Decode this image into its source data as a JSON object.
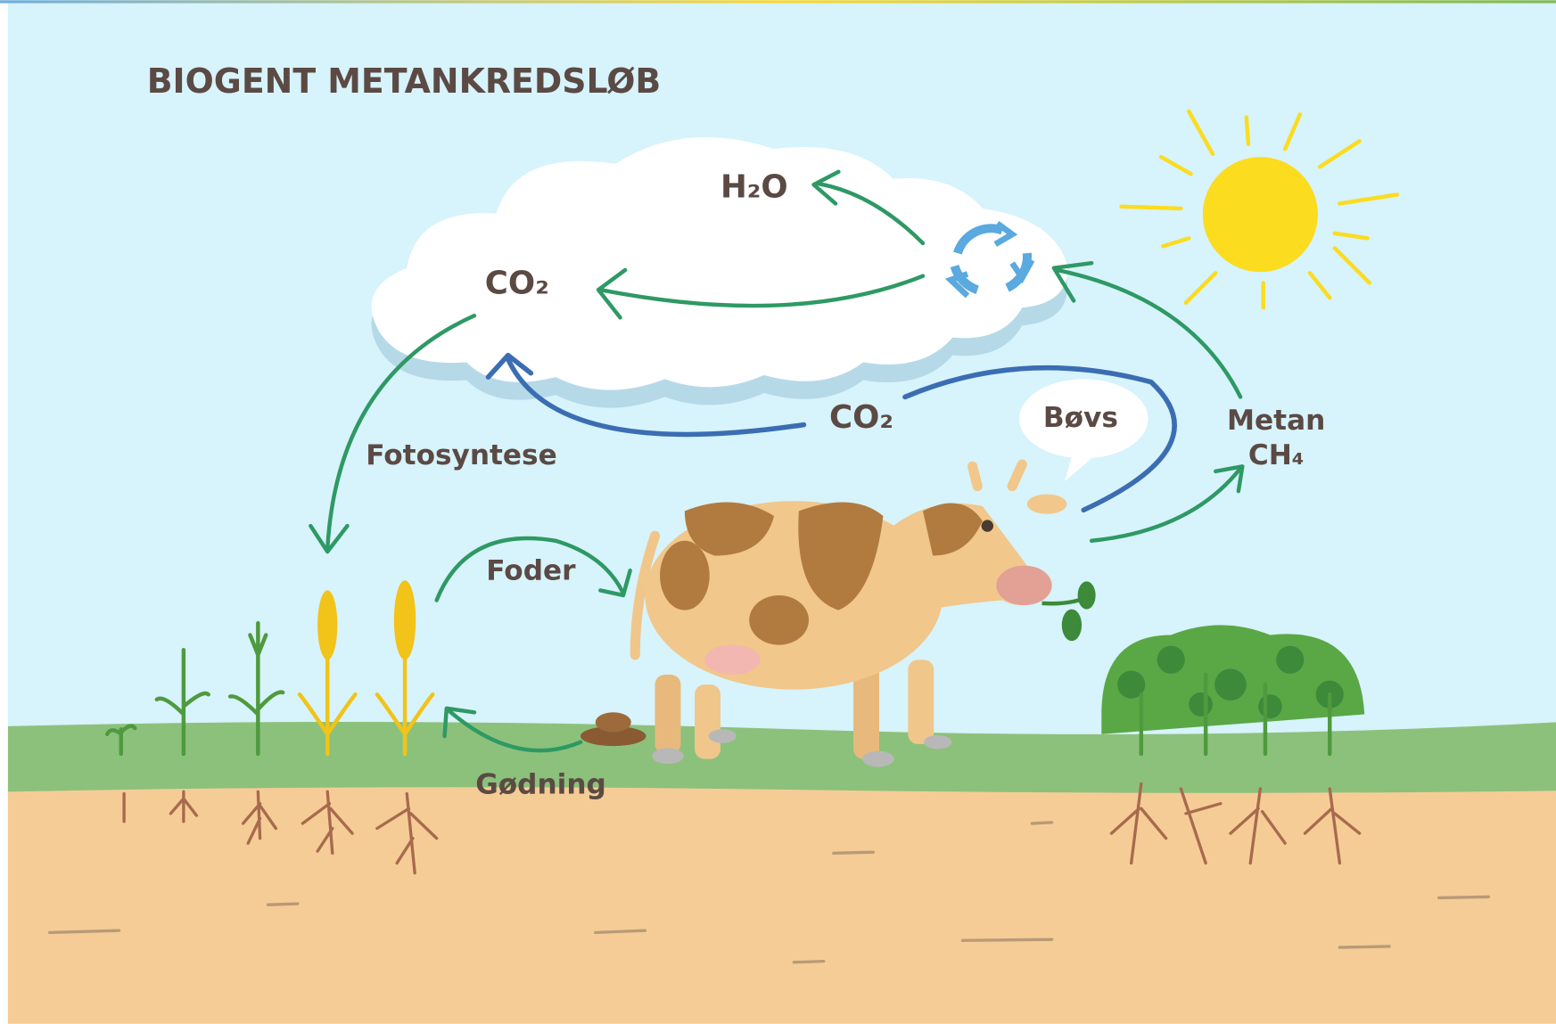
{
  "title": "BIOGENT METANKREDSLØB",
  "labels": {
    "h2o": "H₂O",
    "co2_cloud": "CO₂",
    "co2_cow": "CO₂",
    "bovs": "Bøvs",
    "metan": "Metan",
    "ch4": "CH₄",
    "fotosyntese": "Fotosyntese",
    "foder": "Foder",
    "godning": "Gødning"
  }
}
